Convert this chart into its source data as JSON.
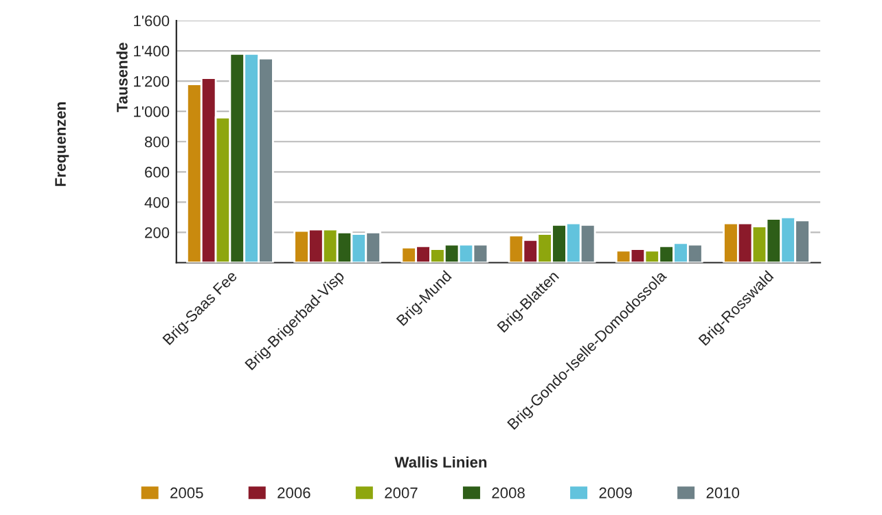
{
  "chart_data": {
    "type": "bar",
    "ylabel": "Frequenzen",
    "annotations": [
      "Tausende"
    ],
    "xlabel": "Wallis Linien",
    "categories": [
      "Brig-Saas Fee",
      "Brig-Brigerbad-Visp",
      "Brig-Mund",
      "Brig-Blatten",
      "Brig-Gondo-Iselle-Domodossola",
      "Brig-Rosswald"
    ],
    "series": [
      {
        "name": "2005",
        "color": "#c98a0e",
        "values": [
          1180,
          210,
          100,
          180,
          80,
          260
        ]
      },
      {
        "name": "2006",
        "color": "#8b1a2a",
        "values": [
          1220,
          220,
          110,
          150,
          90,
          260
        ]
      },
      {
        "name": "2007",
        "color": "#8ea60e",
        "values": [
          960,
          220,
          90,
          190,
          80,
          240
        ]
      },
      {
        "name": "2008",
        "color": "#2e5e18",
        "values": [
          1380,
          200,
          120,
          250,
          110,
          290
        ]
      },
      {
        "name": "2009",
        "color": "#62c3dd",
        "values": [
          1380,
          190,
          120,
          260,
          130,
          300
        ]
      },
      {
        "name": "2010",
        "color": "#6e8288",
        "values": [
          1350,
          200,
          120,
          250,
          120,
          280
        ]
      }
    ],
    "ylim": [
      0,
      1600
    ],
    "yticks": [
      {
        "value": 200,
        "label": "200"
      },
      {
        "value": 400,
        "label": "400"
      },
      {
        "value": 600,
        "label": "600"
      },
      {
        "value": 800,
        "label": "800"
      },
      {
        "value": 1000,
        "label": "1'000"
      },
      {
        "value": 1200,
        "label": "1'200"
      },
      {
        "value": 1400,
        "label": "1'400"
      },
      {
        "value": 1600,
        "label": "1'600"
      }
    ],
    "grid": "y",
    "legend": "bottom"
  }
}
